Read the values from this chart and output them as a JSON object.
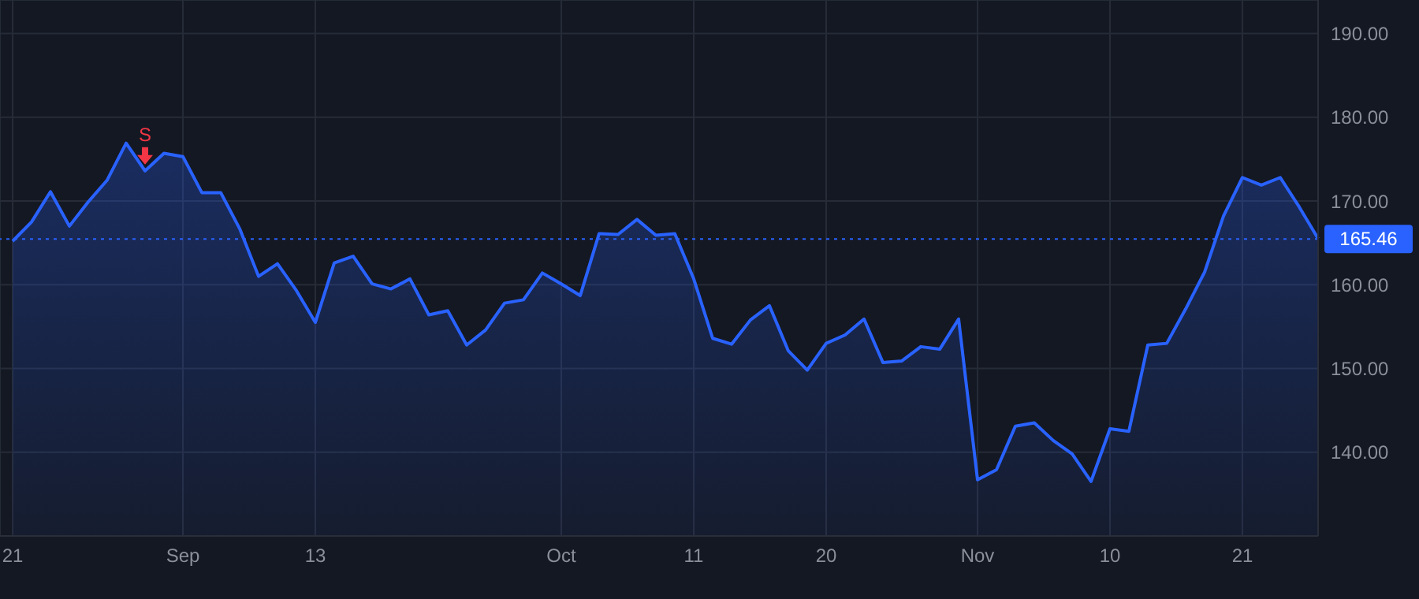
{
  "chart_data": {
    "type": "area",
    "categories": [
      "21",
      null,
      null,
      null,
      null,
      null,
      null,
      null,
      null,
      "Sep",
      null,
      null,
      null,
      null,
      null,
      null,
      "13",
      null,
      null,
      null,
      null,
      null,
      null,
      null,
      null,
      null,
      null,
      null,
      null,
      "Oct",
      null,
      null,
      null,
      null,
      null,
      null,
      "11",
      null,
      null,
      null,
      null,
      null,
      null,
      "20",
      null,
      null,
      null,
      null,
      null,
      null,
      null,
      "Nov",
      null,
      null,
      null,
      null,
      null,
      null,
      "10",
      null,
      null,
      null,
      null,
      null,
      null,
      "21",
      null,
      null,
      null,
      null
    ],
    "series": [
      {
        "color": "#2962ff",
        "values": [
          165.2,
          167.5,
          171.1,
          167.0,
          169.9,
          172.5,
          176.9,
          173.6,
          175.7,
          175.3,
          171.0,
          171.0,
          166.7,
          161.0,
          162.5,
          159.3,
          155.5,
          162.6,
          163.4,
          160.1,
          159.5,
          160.7,
          156.4,
          156.9,
          152.8,
          154.6,
          157.8,
          158.2,
          161.4,
          160.1,
          158.7,
          166.1,
          166.0,
          167.8,
          165.9,
          166.1,
          160.7,
          153.6,
          152.9,
          155.8,
          157.5,
          152.1,
          149.8,
          153.0,
          154.0,
          155.9,
          150.7,
          150.9,
          152.6,
          152.3,
          155.9,
          136.7,
          137.9,
          143.1,
          143.5,
          141.4,
          139.8,
          136.5,
          142.8,
          142.5,
          152.8,
          153.0,
          157.1,
          161.5,
          168.2,
          172.8,
          171.9,
          172.8,
          169.3,
          165.5
        ]
      }
    ],
    "ylim": [
      130,
      194
    ],
    "yticks": [
      {
        "value": 140,
        "label": "140.00"
      },
      {
        "value": 150,
        "label": "150.00"
      },
      {
        "value": 160,
        "label": "160.00"
      },
      {
        "value": 170,
        "label": "170.00"
      },
      {
        "value": 180,
        "label": "180.00"
      },
      {
        "value": 190,
        "label": "190.00"
      }
    ],
    "ref_lines": [
      {
        "axis": "y",
        "value": 165.46,
        "label": "165.46",
        "color": "#2962ff",
        "line_style": "dotted"
      }
    ],
    "annotations": [
      {
        "text": "S",
        "y": 173.6
      }
    ],
    "grid": true,
    "marker": "none",
    "line_style": "solid"
  }
}
